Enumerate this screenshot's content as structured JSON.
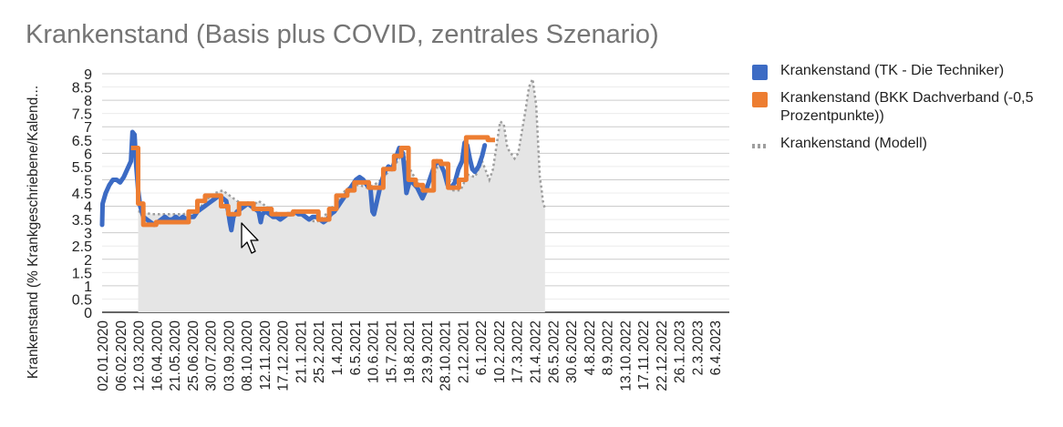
{
  "chart_data": {
    "type": "line",
    "title": "Krankenstand (Basis plus COVID, zentrales Szenario)",
    "ylabel": "Krankenstand (% Krankgeschriebene/Kalend...",
    "xlabel": "",
    "ylim": [
      0,
      9
    ],
    "yticks": [
      "0",
      "0.5",
      "1",
      "1.5",
      "2",
      "2.5",
      "3",
      "3.5",
      "4",
      "4.5",
      "5",
      "5.5",
      "6",
      "6.5",
      "7",
      "7.5",
      "8",
      "8.5",
      "9"
    ],
    "xlim": [
      "2020-01-02",
      "2023-05-04"
    ],
    "x_tick_labels": [
      {
        "date": "2020-01-02",
        "label": "02.01.2020"
      },
      {
        "date": "2020-02-06",
        "label": "06.02.2020"
      },
      {
        "date": "2020-03-12",
        "label": "12.03.2020"
      },
      {
        "date": "2020-04-16",
        "label": "16.04.2020"
      },
      {
        "date": "2020-05-21",
        "label": "21.05.2020"
      },
      {
        "date": "2020-06-25",
        "label": "25.06.2020"
      },
      {
        "date": "2020-07-30",
        "label": "30.07.2020"
      },
      {
        "date": "2020-09-03",
        "label": "03.09.2020"
      },
      {
        "date": "2020-10-08",
        "label": "08.10.2020"
      },
      {
        "date": "2020-11-12",
        "label": "12.11.2020"
      },
      {
        "date": "2020-12-17",
        "label": "17.12.2020"
      },
      {
        "date": "2021-01-21",
        "label": "21.1.2021"
      },
      {
        "date": "2021-02-25",
        "label": "25.2.2021"
      },
      {
        "date": "2021-04-01",
        "label": "1.4.2021"
      },
      {
        "date": "2021-05-06",
        "label": "6.5.2021"
      },
      {
        "date": "2021-06-10",
        "label": "10.6.2021"
      },
      {
        "date": "2021-07-15",
        "label": "15.7.2021"
      },
      {
        "date": "2021-08-19",
        "label": "19.8.2021"
      },
      {
        "date": "2021-09-23",
        "label": "23.9.2021"
      },
      {
        "date": "2021-10-28",
        "label": "28.10.2021"
      },
      {
        "date": "2021-12-02",
        "label": "2.12.2021"
      },
      {
        "date": "2022-01-06",
        "label": "6.1.2022"
      },
      {
        "date": "2022-02-10",
        "label": "10.2.2022"
      },
      {
        "date": "2022-03-17",
        "label": "17.3.2022"
      },
      {
        "date": "2022-04-21",
        "label": "21.4.2022"
      },
      {
        "date": "2022-05-26",
        "label": "26.5.2022"
      },
      {
        "date": "2022-06-30",
        "label": "30.6.2022"
      },
      {
        "date": "2022-08-04",
        "label": "4.8.2022"
      },
      {
        "date": "2022-09-08",
        "label": "8.9.2022"
      },
      {
        "date": "2022-10-13",
        "label": "13.10.2022"
      },
      {
        "date": "2022-11-17",
        "label": "17.11.2022"
      },
      {
        "date": "2022-12-22",
        "label": "22.12.2022"
      },
      {
        "date": "2023-01-26",
        "label": "26.1.2023"
      },
      {
        "date": "2023-03-02",
        "label": "2.3.2023"
      },
      {
        "date": "2023-04-06",
        "label": "6.4.2023"
      }
    ],
    "grid": true,
    "legend_position": "right",
    "series": [
      {
        "name": "Krankenstand (TK - Die Techniker)",
        "color": "#3c6bc4",
        "style": "solid",
        "points": [
          [
            "2020-01-02",
            3.3
          ],
          [
            "2020-01-03",
            4.1
          ],
          [
            "2020-01-09",
            4.5
          ],
          [
            "2020-01-16",
            4.8
          ],
          [
            "2020-01-23",
            5.0
          ],
          [
            "2020-01-30",
            5.0
          ],
          [
            "2020-02-06",
            4.9
          ],
          [
            "2020-02-13",
            5.1
          ],
          [
            "2020-02-20",
            5.4
          ],
          [
            "2020-02-27",
            5.7
          ],
          [
            "2020-03-01",
            6.8
          ],
          [
            "2020-03-05",
            6.7
          ],
          [
            "2020-03-08",
            5.6
          ],
          [
            "2020-03-12",
            4.6
          ],
          [
            "2020-03-16",
            4.0
          ],
          [
            "2020-03-22",
            3.6
          ],
          [
            "2020-03-29",
            3.5
          ],
          [
            "2020-04-05",
            3.4
          ],
          [
            "2020-04-12",
            3.3
          ],
          [
            "2020-04-19",
            3.4
          ],
          [
            "2020-04-26",
            3.5
          ],
          [
            "2020-05-03",
            3.6
          ],
          [
            "2020-05-10",
            3.5
          ],
          [
            "2020-05-17",
            3.5
          ],
          [
            "2020-05-24",
            3.6
          ],
          [
            "2020-05-31",
            3.5
          ],
          [
            "2020-06-07",
            3.6
          ],
          [
            "2020-06-14",
            3.5
          ],
          [
            "2020-06-21",
            3.6
          ],
          [
            "2020-06-28",
            3.6
          ],
          [
            "2020-07-05",
            3.8
          ],
          [
            "2020-07-12",
            3.9
          ],
          [
            "2020-07-19",
            4.0
          ],
          [
            "2020-07-26",
            4.1
          ],
          [
            "2020-08-02",
            4.2
          ],
          [
            "2020-08-09",
            4.3
          ],
          [
            "2020-08-16",
            4.4
          ],
          [
            "2020-08-23",
            4.3
          ],
          [
            "2020-08-30",
            4.2
          ],
          [
            "2020-09-03",
            3.8
          ],
          [
            "2020-09-06",
            3.4
          ],
          [
            "2020-09-09",
            3.1
          ],
          [
            "2020-09-13",
            3.6
          ],
          [
            "2020-09-20",
            3.8
          ],
          [
            "2020-09-27",
            3.9
          ],
          [
            "2020-10-04",
            4.0
          ],
          [
            "2020-10-11",
            4.1
          ],
          [
            "2020-10-18",
            4.0
          ],
          [
            "2020-10-25",
            3.9
          ],
          [
            "2020-11-01",
            3.8
          ],
          [
            "2020-11-05",
            3.4
          ],
          [
            "2020-11-08",
            3.7
          ],
          [
            "2020-11-15",
            3.8
          ],
          [
            "2020-11-22",
            3.7
          ],
          [
            "2020-11-29",
            3.6
          ],
          [
            "2020-12-06",
            3.6
          ],
          [
            "2020-12-13",
            3.5
          ],
          [
            "2020-12-20",
            3.6
          ],
          [
            "2020-12-27",
            3.7
          ],
          [
            "2021-01-03",
            3.7
          ],
          [
            "2021-01-10",
            3.8
          ],
          [
            "2021-01-17",
            3.7
          ],
          [
            "2021-01-24",
            3.7
          ],
          [
            "2021-01-31",
            3.6
          ],
          [
            "2021-02-07",
            3.5
          ],
          [
            "2021-02-14",
            3.6
          ],
          [
            "2021-02-21",
            3.6
          ],
          [
            "2021-02-28",
            3.5
          ],
          [
            "2021-03-07",
            3.4
          ],
          [
            "2021-03-14",
            3.5
          ],
          [
            "2021-03-21",
            3.7
          ],
          [
            "2021-03-28",
            3.8
          ],
          [
            "2021-04-04",
            4.0
          ],
          [
            "2021-04-11",
            4.2
          ],
          [
            "2021-04-18",
            4.4
          ],
          [
            "2021-04-25",
            4.6
          ],
          [
            "2021-05-02",
            4.8
          ],
          [
            "2021-05-09",
            5.0
          ],
          [
            "2021-05-16",
            5.1
          ],
          [
            "2021-05-23",
            5.0
          ],
          [
            "2021-05-30",
            4.8
          ],
          [
            "2021-06-06",
            4.7
          ],
          [
            "2021-06-10",
            3.8
          ],
          [
            "2021-06-13",
            3.7
          ],
          [
            "2021-06-20",
            4.3
          ],
          [
            "2021-06-27",
            4.9
          ],
          [
            "2021-07-04",
            5.3
          ],
          [
            "2021-07-11",
            5.5
          ],
          [
            "2021-07-18",
            5.4
          ],
          [
            "2021-07-25",
            5.8
          ],
          [
            "2021-08-01",
            6.2
          ],
          [
            "2021-08-08",
            6.0
          ],
          [
            "2021-08-12",
            5.2
          ],
          [
            "2021-08-15",
            4.5
          ],
          [
            "2021-08-22",
            5.0
          ],
          [
            "2021-09-05",
            4.7
          ],
          [
            "2021-09-15",
            4.3
          ],
          [
            "2021-09-22",
            4.6
          ],
          [
            "2021-10-06",
            5.4
          ],
          [
            "2021-10-13",
            5.7
          ],
          [
            "2021-10-20",
            5.6
          ],
          [
            "2021-10-27",
            5.3
          ],
          [
            "2021-11-03",
            4.8
          ],
          [
            "2021-11-10",
            4.7
          ],
          [
            "2021-11-17",
            4.9
          ],
          [
            "2021-11-24",
            5.4
          ],
          [
            "2021-12-01",
            5.7
          ],
          [
            "2021-12-06",
            6.4
          ],
          [
            "2021-12-11",
            6.3
          ],
          [
            "2021-12-16",
            5.8
          ],
          [
            "2021-12-21",
            5.4
          ],
          [
            "2021-12-26",
            5.3
          ],
          [
            "2022-01-02",
            5.5
          ],
          [
            "2022-01-09",
            5.9
          ],
          [
            "2022-01-14",
            6.3
          ]
        ]
      },
      {
        "name": "Krankenstand (BKK Dachverband (-0,5 Prozentpunkte))",
        "color": "#ed7d31",
        "style": "step",
        "points": [
          [
            "2020-02-27",
            6.2
          ],
          [
            "2020-03-12",
            4.1
          ],
          [
            "2020-03-22",
            3.3
          ],
          [
            "2020-04-16",
            3.4
          ],
          [
            "2020-05-21",
            3.4
          ],
          [
            "2020-06-18",
            3.8
          ],
          [
            "2020-07-05",
            4.2
          ],
          [
            "2020-07-20",
            4.4
          ],
          [
            "2020-08-20",
            4.0
          ],
          [
            "2020-09-03",
            3.7
          ],
          [
            "2020-09-24",
            4.1
          ],
          [
            "2020-10-22",
            3.9
          ],
          [
            "2020-11-26",
            3.7
          ],
          [
            "2021-01-07",
            3.8
          ],
          [
            "2021-02-25",
            3.5
          ],
          [
            "2021-03-18",
            3.9
          ],
          [
            "2021-04-01",
            4.4
          ],
          [
            "2021-04-22",
            4.6
          ],
          [
            "2021-05-06",
            4.9
          ],
          [
            "2021-06-03",
            4.7
          ],
          [
            "2021-07-01",
            5.4
          ],
          [
            "2021-07-22",
            5.9
          ],
          [
            "2021-08-05",
            6.2
          ],
          [
            "2021-08-19",
            5.0
          ],
          [
            "2021-09-02",
            4.8
          ],
          [
            "2021-09-16",
            4.6
          ],
          [
            "2021-10-07",
            5.7
          ],
          [
            "2021-10-21",
            5.6
          ],
          [
            "2021-11-04",
            4.7
          ],
          [
            "2021-11-25",
            5.0
          ],
          [
            "2021-12-09",
            6.6
          ],
          [
            "2022-01-20",
            6.5
          ]
        ]
      },
      {
        "name": "Krankenstand (Modell)",
        "color": "#9e9e9e",
        "style": "dotted-area",
        "fill": "#e5e5e5",
        "points": [
          [
            "2020-03-12",
            3.8
          ],
          [
            "2020-03-22",
            3.8
          ],
          [
            "2020-04-05",
            3.7
          ],
          [
            "2020-04-26",
            3.7
          ],
          [
            "2020-05-17",
            3.7
          ],
          [
            "2020-06-07",
            3.7
          ],
          [
            "2020-06-28",
            3.8
          ],
          [
            "2020-07-12",
            4.0
          ],
          [
            "2020-07-26",
            4.3
          ],
          [
            "2020-08-09",
            4.5
          ],
          [
            "2020-08-23",
            4.6
          ],
          [
            "2020-09-06",
            4.4
          ],
          [
            "2020-09-20",
            4.2
          ],
          [
            "2020-10-04",
            4.1
          ],
          [
            "2020-10-18",
            4.0
          ],
          [
            "2020-11-01",
            4.2
          ],
          [
            "2020-11-15",
            4.0
          ],
          [
            "2020-11-29",
            3.8
          ],
          [
            "2020-12-13",
            3.7
          ],
          [
            "2020-12-27",
            3.7
          ],
          [
            "2021-01-10",
            3.8
          ],
          [
            "2021-01-24",
            3.7
          ],
          [
            "2021-02-07",
            3.5
          ],
          [
            "2021-02-21",
            3.4
          ],
          [
            "2021-03-07",
            3.6
          ],
          [
            "2021-03-21",
            3.9
          ],
          [
            "2021-04-04",
            4.2
          ],
          [
            "2021-04-18",
            4.6
          ],
          [
            "2021-05-02",
            4.8
          ],
          [
            "2021-05-16",
            4.8
          ],
          [
            "2021-05-30",
            4.7
          ],
          [
            "2021-06-13",
            4.8
          ],
          [
            "2021-06-27",
            5.0
          ],
          [
            "2021-07-11",
            5.3
          ],
          [
            "2021-07-25",
            5.6
          ],
          [
            "2021-08-08",
            6.0
          ],
          [
            "2021-08-22",
            5.4
          ],
          [
            "2021-09-05",
            4.9
          ],
          [
            "2021-09-19",
            4.6
          ],
          [
            "2021-10-03",
            5.0
          ],
          [
            "2021-10-17",
            5.6
          ],
          [
            "2021-10-31",
            5.3
          ],
          [
            "2021-11-14",
            4.6
          ],
          [
            "2021-11-28",
            4.6
          ],
          [
            "2021-12-12",
            5.2
          ],
          [
            "2021-12-26",
            5.1
          ],
          [
            "2022-01-09",
            5.7
          ],
          [
            "2022-01-23",
            5.0
          ],
          [
            "2022-01-30",
            5.4
          ],
          [
            "2022-02-06",
            6.3
          ],
          [
            "2022-02-13",
            7.2
          ],
          [
            "2022-02-20",
            7.1
          ],
          [
            "2022-02-27",
            6.2
          ],
          [
            "2022-03-06",
            6.0
          ],
          [
            "2022-03-13",
            5.8
          ],
          [
            "2022-03-20",
            6.0
          ],
          [
            "2022-03-27",
            6.8
          ],
          [
            "2022-04-03",
            7.6
          ],
          [
            "2022-04-10",
            8.5
          ],
          [
            "2022-04-17",
            8.8
          ],
          [
            "2022-04-24",
            7.8
          ],
          [
            "2022-05-01",
            5.1
          ],
          [
            "2022-05-04",
            4.7
          ],
          [
            "2022-05-07",
            4.2
          ],
          [
            "2022-05-11",
            3.9
          ]
        ]
      }
    ],
    "cursor_icon": "mouse-pointer-icon"
  }
}
